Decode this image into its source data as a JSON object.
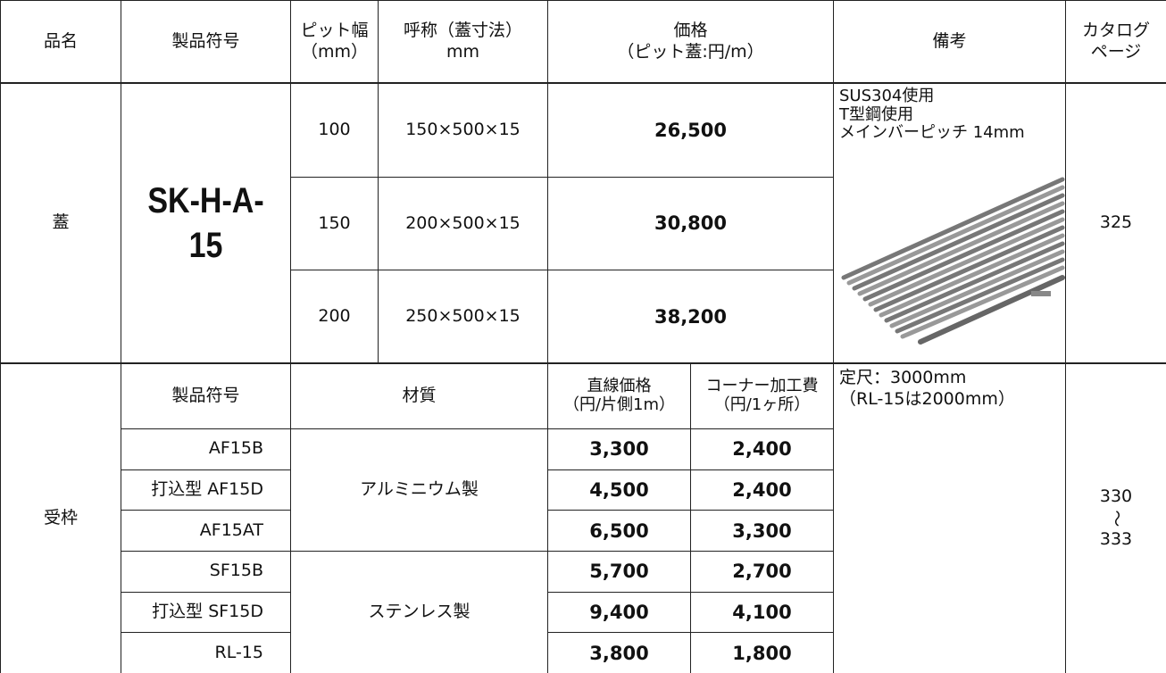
{
  "header": {
    "product_name": "品名",
    "product_code": "製品符号",
    "pit_width": [
      "ピット幅",
      "（mm）"
    ],
    "nominal": [
      "呼称（蓋寸法）",
      "mm"
    ],
    "price": [
      "価格",
      "（ピット蓋:円/m）"
    ],
    "notes": "備考",
    "catalog": [
      "カタログ",
      "ページ"
    ]
  },
  "cover": {
    "name": "蓋",
    "code": "SK-H-A-15",
    "rows": [
      {
        "pit": 100,
        "size": "150×500×15",
        "price": "26,500"
      },
      {
        "pit": 150,
        "size": "200×500×15",
        "price": "30,800"
      },
      {
        "pit": 200,
        "size": "250×500×15",
        "price": "38,200"
      }
    ],
    "notes": [
      "SUS304使用",
      "T型鋼使用",
      "メインバーピッチ 14mm"
    ],
    "catalog_page": 325
  },
  "frame": {
    "name": "受枠",
    "header": {
      "code": "製品符号",
      "material": "材質",
      "straight_price": [
        "直線価格",
        "（円/片側1m）"
      ],
      "corner_price": [
        "コーナー加工費",
        "（円/1ヶ所）"
      ]
    },
    "rows": [
      {
        "code": "AF15B",
        "straight": "3,300",
        "corner": "2,400"
      },
      {
        "code": "打込型 AF15D",
        "straight": "4,500",
        "corner": "2,400"
      },
      {
        "code": "AF15AT",
        "straight": "6,500",
        "corner": "3,300"
      },
      {
        "code": "SF15B",
        "straight": "5,700",
        "corner": "2,700"
      },
      {
        "code": "打込型 SF15D",
        "straight": "9,400",
        "corner": "4,100"
      },
      {
        "code": "RL-15",
        "straight": "3,800",
        "corner": "1,800"
      }
    ],
    "materials": [
      "アルミニウム製",
      "ステンレス製"
    ],
    "notes": [
      "定尺：3000mm",
      "（RL-15は2000mm）"
    ],
    "catalog_pages": [
      "330",
      "〜",
      "333"
    ]
  }
}
